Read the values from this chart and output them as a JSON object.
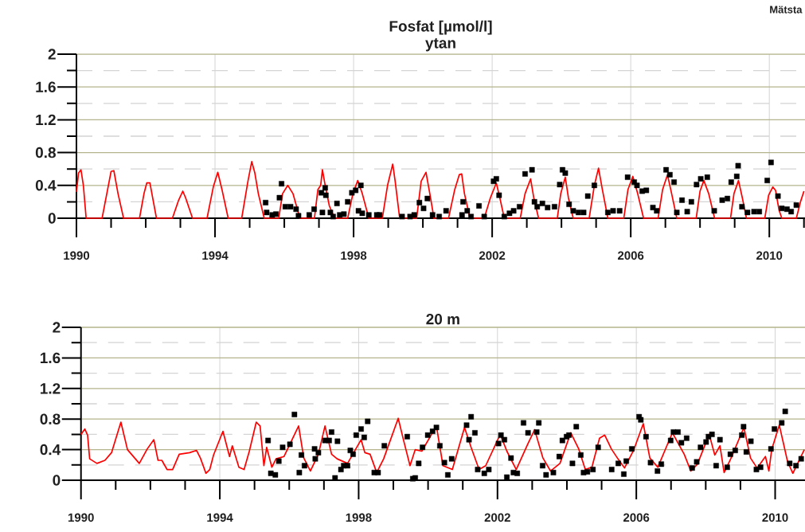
{
  "chart_data": [
    {
      "type": "line",
      "title": "Fosfat [µmol/l]",
      "subtitle": "ytan",
      "annotations": [
        "Mätsta"
      ],
      "grid": true,
      "xlim": [
        1990,
        2011.03
      ],
      "ylim": [
        0,
        2
      ],
      "xticks": [
        1990,
        {
          "value": 1991,
          "label": null
        },
        {
          "value": 1992,
          "label": null
        },
        {
          "value": 1993,
          "label": null
        },
        1994,
        {
          "value": 1995,
          "label": null
        },
        {
          "value": 1996,
          "label": null
        },
        {
          "value": 1997,
          "label": null
        },
        1998,
        {
          "value": 1999,
          "label": null
        },
        {
          "value": 2000,
          "label": null
        },
        {
          "value": 2001,
          "label": null
        },
        2002,
        {
          "value": 2003,
          "label": null
        },
        {
          "value": 2004,
          "label": null
        },
        {
          "value": 2005,
          "label": null
        },
        2006,
        {
          "value": 2007,
          "label": null
        },
        {
          "value": 2008,
          "label": null
        },
        {
          "value": 2009,
          "label": null
        },
        2010,
        {
          "value": 2011,
          "label": null
        }
      ],
      "yticks": [
        0,
        {
          "value": 0.2,
          "label": null
        },
        0.4,
        {
          "value": 0.6,
          "label": null
        },
        0.8,
        {
          "value": 1.0,
          "label": null
        },
        1.2,
        {
          "value": 1.4,
          "label": null
        },
        1.6,
        {
          "value": 1.8,
          "label": null
        },
        2
      ],
      "series": [
        {
          "type": "line",
          "color": "#ff0000",
          "x": [
            1990.0,
            1990.06,
            1990.13,
            1990.2,
            1990.28,
            1990.74,
            1990.9,
            1991.0,
            1991.08,
            1991.2,
            1991.36,
            1991.82,
            1991.95,
            1992.03,
            1992.12,
            1992.31,
            1992.77,
            1992.95,
            1993.07,
            1993.15,
            1993.35,
            1993.77,
            1993.95,
            1994.08,
            1994.2,
            1994.38,
            1994.77,
            1994.95,
            1995.06,
            1995.15,
            1995.25,
            1995.42,
            1995.84,
            1995.95,
            1996.1,
            1996.25,
            1996.45,
            1996.87,
            1996.97,
            1997.05,
            1997.1,
            1997.18,
            1997.3,
            1997.45,
            1997.83,
            1997.98,
            1998.12,
            1998.25,
            1998.44,
            1998.83,
            1998.98,
            1999.13,
            1999.2,
            1999.33,
            1999.82,
            1999.95,
            2000.09,
            2000.2,
            2000.32,
            2000.74,
            2000.92,
            2001.05,
            2001.12,
            2001.2,
            2001.36,
            2001.77,
            2001.95,
            2002.12,
            2002.22,
            2002.35,
            2002.81,
            2002.95,
            2003.11,
            2003.2,
            2003.34,
            2003.88,
            2003.98,
            2004.11,
            2004.2,
            2004.34,
            2004.8,
            2004.95,
            2005.07,
            2005.18,
            2005.34,
            2005.8,
            2005.92,
            2006.06,
            2006.2,
            2006.37,
            2006.79,
            2006.92,
            2007.06,
            2007.18,
            2007.33,
            2007.89,
            2008.0,
            2008.11,
            2008.25,
            2008.42,
            2008.88,
            2008.98,
            2009.11,
            2009.22,
            2009.34,
            2009.87,
            2009.98,
            2010.1,
            2010.18,
            2010.28,
            2010.36,
            2010.78,
            2010.9,
            2011.0
          ],
          "values": [
            0.32,
            0.55,
            0.59,
            0.4,
            0,
            0,
            0.35,
            0.57,
            0.58,
            0.3,
            0,
            0,
            0.3,
            0.43,
            0.43,
            0,
            0,
            0.22,
            0.33,
            0.25,
            0,
            0,
            0.38,
            0.56,
            0.35,
            0,
            0,
            0.45,
            0.69,
            0.55,
            0.3,
            0,
            0,
            0.3,
            0.4,
            0.3,
            0,
            0,
            0.35,
            0.4,
            0.59,
            0.4,
            0.15,
            0,
            0,
            0.3,
            0.46,
            0.3,
            0,
            0,
            0.4,
            0.66,
            0.45,
            0,
            0,
            0.45,
            0.56,
            0.3,
            0,
            0,
            0.35,
            0.53,
            0.54,
            0.3,
            0,
            0,
            0.25,
            0.43,
            0.25,
            0,
            0,
            0.3,
            0.48,
            0.25,
            0,
            0,
            0.3,
            0.5,
            0.25,
            0,
            0,
            0.4,
            0.61,
            0.35,
            0,
            0,
            0.35,
            0.51,
            0.3,
            0,
            0,
            0.35,
            0.53,
            0.3,
            0,
            0,
            0.33,
            0.46,
            0.3,
            0,
            0,
            0.3,
            0.46,
            0.25,
            0,
            0,
            0.28,
            0.38,
            0.34,
            0.1,
            0,
            0,
            0.2,
            0.33
          ]
        },
        {
          "type": "scatter",
          "marker": "square",
          "color": "#000000",
          "x": [
            1995.46,
            1995.49,
            1995.65,
            1995.76,
            1995.86,
            1995.92,
            1996.03,
            1996.18,
            1996.34,
            1996.41,
            1996.72,
            1996.86,
            1997.07,
            1997.1,
            1997.18,
            1997.2,
            1997.33,
            1997.41,
            1997.52,
            1997.6,
            1997.72,
            1997.83,
            1997.95,
            1998.06,
            1998.14,
            1998.21,
            1998.25,
            1998.44,
            1998.67,
            1998.75,
            1999.4,
            1999.63,
            1999.75,
            1999.9,
            2000.02,
            2000.13,
            2000.28,
            2000.47,
            2000.67,
            2001.13,
            2001.16,
            2001.28,
            2001.39,
            2001.62,
            2001.77,
            2002.04,
            2002.12,
            2002.2,
            2002.35,
            2002.5,
            2002.62,
            2002.79,
            2002.95,
            2003.15,
            2003.22,
            2003.3,
            2003.45,
            2003.6,
            2003.8,
            2003.95,
            2004.03,
            2004.11,
            2004.22,
            2004.34,
            2004.49,
            2004.64,
            2004.76,
            2004.95,
            2005.34,
            2005.49,
            2005.68,
            2005.91,
            2006.1,
            2006.18,
            2006.33,
            2006.45,
            2006.64,
            2006.75,
            2007.02,
            2007.13,
            2007.25,
            2007.33,
            2007.48,
            2007.63,
            2007.75,
            2007.9,
            2008.02,
            2008.21,
            2008.41,
            2008.64,
            2008.79,
            2008.9,
            2009.06,
            2009.1,
            2009.21,
            2009.37,
            2009.56,
            2009.71,
            2009.94,
            2010.05,
            2010.25,
            2010.36,
            2010.51,
            2010.63,
            2010.78
          ],
          "values": [
            0.19,
            0.07,
            0.04,
            0.05,
            0.25,
            0.42,
            0.14,
            0.14,
            0.11,
            0.03,
            0.04,
            0.11,
            0.31,
            0.07,
            0.37,
            0.28,
            0.07,
            0.02,
            0.18,
            0.04,
            0.05,
            0.2,
            0.31,
            0.34,
            0.09,
            0.4,
            0.06,
            0.04,
            0.04,
            0.04,
            0.02,
            0.02,
            0.04,
            0.19,
            0.12,
            0.24,
            0.04,
            0.02,
            0.09,
            0.04,
            0.2,
            0.09,
            0.02,
            0.15,
            0.02,
            0.45,
            0.48,
            0.28,
            0.02,
            0.06,
            0.09,
            0.14,
            0.54,
            0.59,
            0.2,
            0.14,
            0.18,
            0.13,
            0.14,
            0.41,
            0.59,
            0.55,
            0.17,
            0.09,
            0.07,
            0.07,
            0.27,
            0.4,
            0.07,
            0.09,
            0.09,
            0.5,
            0.44,
            0.4,
            0.33,
            0.34,
            0.13,
            0.09,
            0.59,
            0.53,
            0.44,
            0.07,
            0.22,
            0.08,
            0.2,
            0.41,
            0.48,
            0.5,
            0.09,
            0.22,
            0.24,
            0.44,
            0.51,
            0.64,
            0.14,
            0.07,
            0.08,
            0.08,
            0.46,
            0.68,
            0.27,
            0.12,
            0.11,
            0.08,
            0.16
          ]
        }
      ]
    },
    {
      "type": "line",
      "title": "20 m",
      "grid": true,
      "xlim": [
        1990,
        2010.86
      ],
      "ylim": [
        0,
        2
      ],
      "xticks": [
        1990,
        {
          "value": 1991,
          "label": null
        },
        {
          "value": 1992,
          "label": null
        },
        {
          "value": 1993,
          "label": null
        },
        1994,
        {
          "value": 1995,
          "label": null
        },
        {
          "value": 1996,
          "label": null
        },
        {
          "value": 1997,
          "label": null
        },
        1998,
        {
          "value": 1999,
          "label": null
        },
        {
          "value": 2000,
          "label": null
        },
        {
          "value": 2001,
          "label": null
        },
        2002,
        {
          "value": 2003,
          "label": null
        },
        {
          "value": 2004,
          "label": null
        },
        {
          "value": 2005,
          "label": null
        },
        2006,
        {
          "value": 2007,
          "label": null
        },
        {
          "value": 2008,
          "label": null
        },
        {
          "value": 2009,
          "label": null
        },
        2010
      ],
      "yticks": [
        0,
        {
          "value": 0.2,
          "label": null
        },
        0.4,
        {
          "value": 0.6,
          "label": null
        },
        0.8,
        {
          "value": 1.0,
          "label": null
        },
        1.2,
        {
          "value": 1.4,
          "label": null
        },
        1.6,
        {
          "value": 1.8,
          "label": null
        },
        2
      ],
      "series": [
        {
          "type": "line",
          "color": "#ff0000",
          "x": [
            1990.0,
            1990.11,
            1990.19,
            1990.25,
            1990.46,
            1990.69,
            1990.88,
            1991.15,
            1991.34,
            1991.68,
            1991.91,
            1992.1,
            1992.22,
            1992.33,
            1992.48,
            1992.64,
            1992.83,
            1993.13,
            1993.33,
            1993.44,
            1993.6,
            1993.71,
            1993.82,
            1994.09,
            1994.28,
            1994.36,
            1994.55,
            1994.7,
            1994.85,
            1995.05,
            1995.16,
            1995.27,
            1995.35,
            1995.5,
            1995.62,
            1995.85,
            1996.27,
            1996.42,
            1996.61,
            1996.84,
            1997.03,
            1997.22,
            1997.38,
            1997.68,
            1998.07,
            1998.18,
            1998.33,
            1998.52,
            1998.72,
            1999.14,
            1999.29,
            1999.48,
            1999.63,
            1999.82,
            2000.24,
            2000.43,
            2000.7,
            2001.05,
            2001.24,
            2001.47,
            2001.66,
            2002.08,
            2002.27,
            2002.54,
            2002.88,
            2003.07,
            2003.31,
            2003.53,
            2003.8,
            2004.11,
            2004.34,
            2004.53,
            2004.72,
            2004.94,
            2005.09,
            2005.28,
            2005.47,
            2005.66,
            2005.93,
            2006.2,
            2006.39,
            2006.62,
            2006.88,
            2007.04,
            2007.38,
            2007.57,
            2007.76,
            2008.1,
            2008.26,
            2008.41,
            2008.53,
            2008.72,
            2009.1,
            2009.29,
            2009.48,
            2009.72,
            2009.82,
            2009.9,
            2010.12,
            2010.36,
            2010.51,
            2010.84
          ],
          "values": [
            0.6,
            0.67,
            0.59,
            0.28,
            0.22,
            0.26,
            0.36,
            0.76,
            0.4,
            0.22,
            0.41,
            0.53,
            0.26,
            0.26,
            0.14,
            0.14,
            0.34,
            0.36,
            0.39,
            0.29,
            0.09,
            0.14,
            0.33,
            0.64,
            0.31,
            0.45,
            0.17,
            0.14,
            0.38,
            0.76,
            0.71,
            0.19,
            0.43,
            0.17,
            0.28,
            0.31,
            0.71,
            0.29,
            0.12,
            0.34,
            0.71,
            0.34,
            0.28,
            0.22,
            0.53,
            0.36,
            0.34,
            0.1,
            0.28,
            0.81,
            0.53,
            0.19,
            0.4,
            0.38,
            0.71,
            0.19,
            0.14,
            0.69,
            0.43,
            0.14,
            0.19,
            0.6,
            0.38,
            0.14,
            0.48,
            0.66,
            0.29,
            0.12,
            0.22,
            0.62,
            0.41,
            0.14,
            0.17,
            0.55,
            0.59,
            0.41,
            0.28,
            0.16,
            0.4,
            0.74,
            0.29,
            0.17,
            0.45,
            0.62,
            0.34,
            0.12,
            0.21,
            0.6,
            0.33,
            0.45,
            0.1,
            0.28,
            0.69,
            0.29,
            0.16,
            0.31,
            0.12,
            0.4,
            0.72,
            0.24,
            0.09,
            0.4
          ]
        },
        {
          "type": "scatter",
          "marker": "square",
          "color": "#000000",
          "x": [
            1995.39,
            1995.47,
            1995.6,
            1995.7,
            1995.81,
            1996.02,
            1996.15,
            1996.29,
            1996.35,
            1996.44,
            1996.73,
            1996.75,
            1996.84,
            1997.03,
            1997.15,
            1997.22,
            1997.32,
            1997.39,
            1997.49,
            1997.57,
            1997.68,
            1997.76,
            1997.84,
            1997.93,
            1998.07,
            1998.16,
            1998.26,
            1998.45,
            1998.56,
            1998.74,
            1999.4,
            1999.56,
            1999.63,
            1999.73,
            1999.84,
            1999.99,
            2000.13,
            2000.24,
            2000.34,
            2000.47,
            2000.57,
            2000.68,
            2001.11,
            2001.18,
            2001.24,
            2001.35,
            2001.43,
            2001.62,
            2001.75,
            2002.03,
            2002.1,
            2002.2,
            2002.27,
            2002.39,
            2002.46,
            2002.57,
            2002.75,
            2002.88,
            2003.13,
            2003.19,
            2003.3,
            2003.4,
            2003.61,
            2003.78,
            2003.87,
            2003.99,
            2004.06,
            2004.16,
            2004.27,
            2004.4,
            2004.48,
            2004.59,
            2004.75,
            2004.9,
            2005.29,
            2005.48,
            2005.64,
            2005.71,
            2005.87,
            2006.08,
            2006.13,
            2006.28,
            2006.41,
            2006.61,
            2006.72,
            2006.99,
            2007.07,
            2007.2,
            2007.3,
            2007.45,
            2007.61,
            2007.74,
            2007.85,
            2008.01,
            2008.08,
            2008.18,
            2008.3,
            2008.41,
            2008.62,
            2008.71,
            2008.85,
            2009.04,
            2009.09,
            2009.17,
            2009.3,
            2009.46,
            2009.58,
            2009.88,
            2009.98,
            2010.19,
            2010.29,
            2010.42,
            2010.6,
            2010.75
          ],
          "values": [
            0.52,
            0.09,
            0.07,
            0.25,
            0.43,
            0.47,
            0.86,
            0.1,
            0.33,
            0.19,
            0.41,
            0.28,
            0.36,
            0.52,
            0.52,
            0.63,
            0.03,
            0.51,
            0.14,
            0.19,
            0.19,
            0.39,
            0.34,
            0.59,
            0.67,
            0.56,
            0.77,
            0.1,
            0.1,
            0.45,
            0.57,
            0.02,
            0.03,
            0.22,
            0.43,
            0.59,
            0.64,
            0.69,
            0.45,
            0.23,
            0.07,
            0.28,
            0.72,
            0.53,
            0.83,
            0.62,
            0.14,
            0.09,
            0.14,
            0.48,
            0.59,
            0.53,
            0.04,
            0.29,
            0.1,
            0.09,
            0.75,
            0.62,
            0.63,
            0.75,
            0.19,
            0.07,
            0.1,
            0.31,
            0.52,
            0.57,
            0.59,
            0.22,
            0.7,
            0.33,
            0.1,
            0.11,
            0.14,
            0.43,
            0.14,
            0.22,
            0.08,
            0.25,
            0.41,
            0.83,
            0.79,
            0.57,
            0.23,
            0.12,
            0.21,
            0.52,
            0.63,
            0.63,
            0.49,
            0.55,
            0.16,
            0.24,
            0.43,
            0.5,
            0.57,
            0.6,
            0.19,
            0.53,
            0.17,
            0.34,
            0.39,
            0.59,
            0.7,
            0.37,
            0.51,
            0.14,
            0.17,
            0.41,
            0.67,
            0.75,
            0.9,
            0.22,
            0.19,
            0.28
          ]
        }
      ]
    }
  ]
}
